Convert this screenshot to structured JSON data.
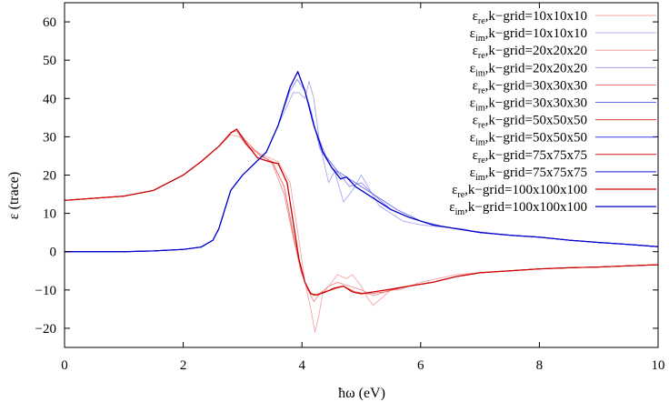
{
  "chart_data": {
    "type": "line",
    "xlabel": "ħω (eV)",
    "ylabel": "ε (trace)",
    "xlim": [
      0,
      10
    ],
    "ylim": [
      -25,
      65
    ],
    "xticks": [
      0,
      2,
      4,
      6,
      8,
      10
    ],
    "yticks": [
      -20,
      -10,
      0,
      10,
      20,
      30,
      40,
      50,
      60
    ],
    "grid": false,
    "legend_position": "top-right",
    "series": [
      {
        "name": "ε_re,k−grid=10x10x10",
        "sub": "re",
        "suffix": ",k−grid=10x10x10",
        "color": "#f4a6a6",
        "width": 0.9,
        "x": [
          0,
          1,
          1.5,
          2,
          2.3,
          2.6,
          2.8,
          2.95,
          3.1,
          3.3,
          3.6,
          3.8,
          3.95,
          4.05,
          4.15,
          4.22,
          4.28,
          4.35,
          4.45,
          4.6,
          4.75,
          4.85,
          5.0,
          5.1,
          5.2,
          5.35,
          5.5,
          5.65,
          5.8,
          6.0,
          6.3,
          6.6,
          7.0,
          7.5,
          8,
          8.5,
          9,
          9.5,
          10
        ],
        "y": [
          13.4,
          14.5,
          16,
          20,
          23.5,
          27.5,
          30.5,
          30,
          27,
          25.5,
          23.5,
          18,
          3,
          -8,
          -15,
          -21,
          -17,
          -11,
          -9,
          -6,
          -7,
          -6,
          -9,
          -12,
          -14,
          -12,
          -10,
          -10,
          -9,
          -8,
          -7,
          -6,
          -5.5,
          -5,
          -4.5,
          -4.2,
          -4,
          -3.7,
          -3.4
        ]
      },
      {
        "name": "ε_im,k−grid=10x10x10",
        "sub": "im",
        "suffix": ",k−grid=10x10x10",
        "color": "#a8a8f2",
        "width": 0.9,
        "x": [
          0,
          1,
          1.5,
          2,
          2.3,
          2.5,
          2.6,
          2.8,
          3.0,
          3.2,
          3.4,
          3.6,
          3.75,
          3.85,
          3.95,
          4.05,
          4.12,
          4.2,
          4.3,
          4.45,
          4.55,
          4.7,
          4.85,
          5.0,
          5.15,
          5.3,
          5.5,
          5.7,
          6.0,
          6.3,
          6.7,
          7,
          7.5,
          8,
          8.5,
          9,
          9.5,
          10
        ],
        "y": [
          0,
          0,
          0.2,
          0.6,
          1.2,
          3,
          6,
          16,
          20,
          23,
          26,
          33,
          38,
          41.5,
          41.5,
          40,
          44.5,
          40,
          28,
          18,
          21,
          13,
          16,
          20,
          16,
          12,
          10,
          8,
          7,
          6.5,
          6,
          5,
          4.3,
          3.8,
          3,
          2.4,
          1.9,
          1.3
        ]
      },
      {
        "name": "ε_re,k−grid=20x20x20",
        "sub": "re",
        "suffix": ",k−grid=20x20x20",
        "color": "#ef8d8d",
        "width": 0.9,
        "x": [
          0,
          1,
          1.5,
          2,
          2.3,
          2.6,
          2.8,
          2.9,
          3.05,
          3.3,
          3.5,
          3.7,
          3.85,
          3.98,
          4.1,
          4.2,
          4.3,
          4.45,
          4.6,
          4.8,
          5.0,
          5.2,
          5.5,
          5.8,
          6.2,
          6.6,
          7,
          7.5,
          8,
          8.5,
          9,
          9.5,
          10
        ],
        "y": [
          13.4,
          14.5,
          16,
          20,
          23.5,
          27.5,
          31,
          31.5,
          28,
          25.5,
          23,
          15,
          4,
          -5,
          -10,
          -13,
          -11,
          -9,
          -8,
          -9,
          -10,
          -11.5,
          -10,
          -9,
          -8,
          -6.5,
          -5.5,
          -5,
          -4.5,
          -4.2,
          -4,
          -3.7,
          -3.4
        ]
      },
      {
        "name": "ε_im,k−grid=20x20x20",
        "sub": "im",
        "suffix": ",k−grid=20x20x20",
        "color": "#8d8def",
        "width": 0.9,
        "x": [
          0,
          1,
          1.5,
          2,
          2.3,
          2.5,
          2.6,
          2.8,
          3.0,
          3.2,
          3.4,
          3.6,
          3.8,
          3.92,
          4.05,
          4.15,
          4.3,
          4.5,
          4.65,
          4.8,
          5.0,
          5.2,
          5.5,
          5.8,
          6.2,
          6.6,
          7,
          7.5,
          8,
          8.5,
          9,
          9.5,
          10
        ],
        "y": [
          0,
          0,
          0.2,
          0.6,
          1.2,
          3,
          6,
          16,
          20,
          23,
          26,
          33,
          42,
          45,
          42,
          37,
          27,
          22,
          20,
          17,
          18,
          15,
          11,
          9,
          7,
          6,
          5,
          4.3,
          3.8,
          3,
          2.4,
          1.9,
          1.3
        ]
      },
      {
        "name": "ε_re,k−grid=30x30x30",
        "sub": "re",
        "suffix": ",k−grid=30x30x30",
        "color": "#e86a6a",
        "width": 0.9,
        "x": [
          0,
          1,
          1.5,
          2,
          2.3,
          2.6,
          2.8,
          2.9,
          3.05,
          3.3,
          3.5,
          3.7,
          3.85,
          3.98,
          4.1,
          4.2,
          4.35,
          4.5,
          4.7,
          4.9,
          5.1,
          5.4,
          5.8,
          6.2,
          6.6,
          7,
          7.5,
          8,
          8.5,
          9,
          9.5,
          10
        ],
        "y": [
          13.4,
          14.5,
          16,
          20,
          23.5,
          27.5,
          31,
          32,
          29,
          25,
          23.5,
          17,
          5,
          -5,
          -10,
          -11.5,
          -10.5,
          -10,
          -9,
          -10.5,
          -11,
          -10.5,
          -9,
          -8,
          -6.5,
          -5.5,
          -5,
          -4.5,
          -4.2,
          -4,
          -3.7,
          -3.4
        ]
      },
      {
        "name": "ε_im,k−grid=30x30x30",
        "sub": "im",
        "suffix": ",k−grid=30x30x30",
        "color": "#6a6ae8",
        "width": 0.9,
        "x": [
          0,
          1,
          1.5,
          2,
          2.3,
          2.5,
          2.6,
          2.8,
          3.0,
          3.2,
          3.4,
          3.6,
          3.8,
          3.93,
          4.05,
          4.2,
          4.4,
          4.6,
          4.8,
          5.0,
          5.3,
          5.6,
          6.0,
          6.4,
          6.8,
          7.2,
          7.6,
          8,
          8.5,
          9,
          9.5,
          10
        ],
        "y": [
          0,
          0,
          0.2,
          0.6,
          1.2,
          3,
          6,
          16,
          20,
          23,
          26,
          33,
          43,
          47,
          42,
          33,
          25,
          21,
          19,
          17,
          14,
          11,
          8,
          6.5,
          5.5,
          4.8,
          4.2,
          3.8,
          3,
          2.4,
          1.9,
          1.3
        ]
      },
      {
        "name": "ε_re,k−grid=50x50x50",
        "sub": "re",
        "suffix": ",k−grid=50x50x50",
        "color": "#dd3a3a",
        "width": 1.0,
        "x": [
          0,
          1,
          1.5,
          2,
          2.3,
          2.6,
          2.8,
          2.9,
          3.05,
          3.25,
          3.45,
          3.6,
          3.75,
          3.85,
          3.95,
          4.05,
          4.15,
          4.25,
          4.4,
          4.55,
          4.7,
          4.85,
          5.0,
          5.2,
          5.5,
          5.8,
          6.2,
          6.6,
          7,
          7.5,
          8,
          8.5,
          9,
          9.5,
          10
        ],
        "y": [
          13.4,
          14.5,
          16,
          20,
          23.5,
          27.5,
          31,
          32,
          28.5,
          24.5,
          23.5,
          23,
          18,
          8,
          -2,
          -8,
          -11,
          -11.3,
          -10.5,
          -9.5,
          -9,
          -10.5,
          -11,
          -10.5,
          -9.8,
          -9,
          -8,
          -6.5,
          -5.5,
          -5,
          -4.5,
          -4.2,
          -4,
          -3.7,
          -3.4
        ]
      },
      {
        "name": "ε_im,k−grid=50x50x50",
        "sub": "im",
        "suffix": ",k−grid=50x50x50",
        "color": "#3a3add",
        "width": 1.0,
        "x": [
          0,
          1,
          1.5,
          2,
          2.3,
          2.5,
          2.6,
          2.8,
          3.0,
          3.2,
          3.4,
          3.6,
          3.8,
          3.93,
          4.05,
          4.2,
          4.35,
          4.5,
          4.65,
          4.75,
          4.9,
          5.0,
          5.2,
          5.5,
          5.8,
          6.2,
          6.6,
          7,
          7.5,
          8,
          8.5,
          9,
          9.5,
          10
        ],
        "y": [
          0,
          0,
          0.2,
          0.6,
          1.2,
          3,
          6,
          16,
          20,
          23,
          26,
          33,
          43,
          47,
          42,
          33,
          26,
          22,
          19,
          19.5,
          17,
          16,
          14,
          11,
          9,
          7,
          6,
          5,
          4.3,
          3.8,
          3,
          2.4,
          1.9,
          1.3
        ]
      },
      {
        "name": "ε_re,k−grid=75x75x75",
        "sub": "re",
        "suffix": ",k−grid=75x75x75",
        "color": "#d01515",
        "width": 1.0,
        "x": [
          0,
          1,
          1.5,
          2,
          2.3,
          2.6,
          2.8,
          2.9,
          3.05,
          3.25,
          3.45,
          3.6,
          3.75,
          3.85,
          3.95,
          4.05,
          4.15,
          4.25,
          4.4,
          4.55,
          4.7,
          4.85,
          5.0,
          5.2,
          5.5,
          5.8,
          6.2,
          6.6,
          7,
          7.5,
          8,
          8.5,
          9,
          9.5,
          10
        ],
        "y": [
          13.4,
          14.5,
          16,
          20,
          23.5,
          27.5,
          31,
          32,
          28.5,
          24.5,
          23.5,
          23,
          18,
          8,
          -2,
          -8,
          -11,
          -11.3,
          -10.5,
          -9.5,
          -9,
          -10.5,
          -11,
          -10.5,
          -9.8,
          -9,
          -8,
          -6.5,
          -5.5,
          -5,
          -4.5,
          -4.2,
          -4,
          -3.7,
          -3.4
        ]
      },
      {
        "name": "ε_im,k−grid=75x75x75",
        "sub": "im",
        "suffix": ",k−grid=75x75x75",
        "color": "#1515d0",
        "width": 1.0,
        "x": [
          0,
          1,
          1.5,
          2,
          2.3,
          2.5,
          2.6,
          2.8,
          3.0,
          3.2,
          3.4,
          3.6,
          3.8,
          3.93,
          4.05,
          4.2,
          4.35,
          4.5,
          4.65,
          4.75,
          4.9,
          5.0,
          5.2,
          5.5,
          5.8,
          6.2,
          6.6,
          7,
          7.5,
          8,
          8.5,
          9,
          9.5,
          10
        ],
        "y": [
          0,
          0,
          0.2,
          0.6,
          1.2,
          3,
          6,
          16,
          20,
          23,
          26,
          33,
          43,
          47,
          42,
          33,
          26,
          22,
          19,
          19.5,
          17,
          16,
          14,
          11,
          9,
          7,
          6,
          5,
          4.3,
          3.8,
          3,
          2.4,
          1.9,
          1.3
        ]
      },
      {
        "name": "ε_re,k−grid=100x100x100",
        "sub": "re",
        "suffix": ",k−grid=100x100x100",
        "color": "#cc0000",
        "width": 1.2,
        "x": [
          0,
          1,
          1.5,
          2,
          2.3,
          2.6,
          2.8,
          2.9,
          3.05,
          3.25,
          3.45,
          3.6,
          3.75,
          3.85,
          3.95,
          4.05,
          4.15,
          4.25,
          4.4,
          4.55,
          4.7,
          4.85,
          5.0,
          5.2,
          5.5,
          5.8,
          6.2,
          6.6,
          7,
          7.5,
          8,
          8.5,
          9,
          9.5,
          10
        ],
        "y": [
          13.4,
          14.5,
          16,
          20,
          23.5,
          27.5,
          31,
          32,
          28.5,
          24.5,
          23.5,
          23,
          18,
          8,
          -2,
          -8,
          -11,
          -11.3,
          -10.5,
          -9.5,
          -9,
          -10.5,
          -11,
          -10.5,
          -9.8,
          -9,
          -8,
          -6.5,
          -5.5,
          -5,
          -4.5,
          -4.2,
          -4,
          -3.7,
          -3.4
        ]
      },
      {
        "name": "ε_im,k−grid=100x100x100",
        "sub": "im",
        "suffix": ",k−grid=100x100x100",
        "color": "#0000cc",
        "width": 1.2,
        "x": [
          0,
          1,
          1.5,
          2,
          2.3,
          2.5,
          2.6,
          2.8,
          3.0,
          3.2,
          3.4,
          3.6,
          3.8,
          3.93,
          4.05,
          4.2,
          4.35,
          4.5,
          4.65,
          4.75,
          4.9,
          5.0,
          5.2,
          5.5,
          5.8,
          6.2,
          6.6,
          7,
          7.5,
          8,
          8.5,
          9,
          9.5,
          10
        ],
        "y": [
          0,
          0,
          0.2,
          0.6,
          1.2,
          3,
          6,
          16,
          20,
          23,
          26,
          33,
          43,
          47,
          42,
          33,
          26,
          22,
          19,
          19.5,
          17,
          16,
          14,
          11,
          9,
          7,
          6,
          5,
          4.3,
          3.8,
          3,
          2.4,
          1.9,
          1.3
        ]
      }
    ]
  }
}
